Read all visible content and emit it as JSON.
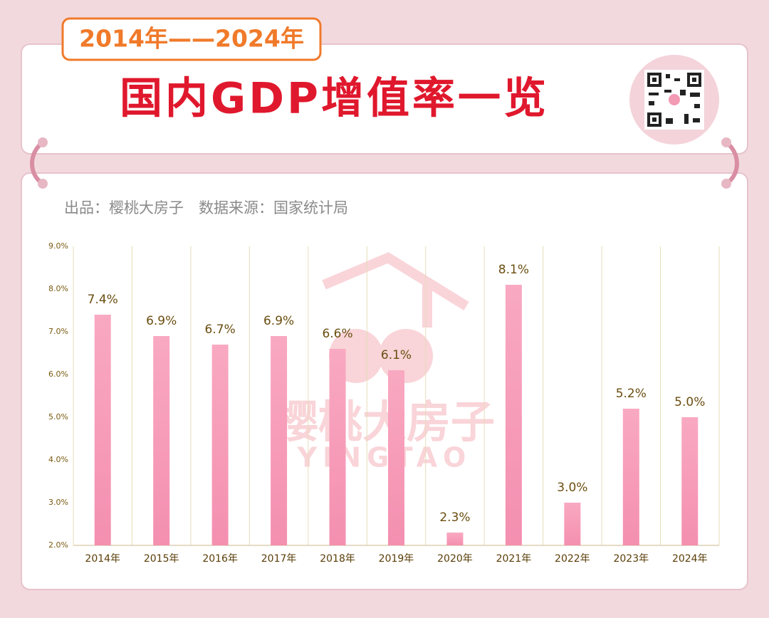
{
  "header": {
    "badge": "2014年——2024年"
  },
  "watermark": [
    "樱桃大房子",
    "YINGTAO"
  ],
  "chart_data": {
    "type": "bar",
    "title": "国内GDP增值率一览",
    "subtitle": "出品：樱桃大房子　数据来源：国家统计局",
    "categories": [
      "2014年",
      "2015年",
      "2016年",
      "2017年",
      "2018年",
      "2019年",
      "2020年",
      "2021年",
      "2022年",
      "2023年",
      "2024年"
    ],
    "values": [
      7.4,
      6.9,
      6.7,
      6.9,
      6.6,
      6.1,
      2.3,
      8.1,
      3.0,
      5.2,
      5.0
    ],
    "value_labels": [
      "7.4%",
      "6.9%",
      "6.7%",
      "6.9%",
      "6.6%",
      "6.1%",
      "2.3%",
      "8.1%",
      "3.0%",
      "5.2%",
      "5.0%"
    ],
    "color": "#f7a0bc",
    "ylim": [
      2,
      9
    ],
    "yticks": [
      {
        "value": 2,
        "label": "2.0%"
      },
      {
        "value": 3,
        "label": "3.0%"
      },
      {
        "value": 4,
        "label": "4.0%"
      },
      {
        "value": 5,
        "label": "5.0%"
      },
      {
        "value": 6,
        "label": "6.0%"
      },
      {
        "value": 7,
        "label": "7.0%"
      },
      {
        "value": 8,
        "label": "8.0%"
      },
      {
        "value": 9,
        "label": "9.0%"
      }
    ],
    "grid": false
  }
}
